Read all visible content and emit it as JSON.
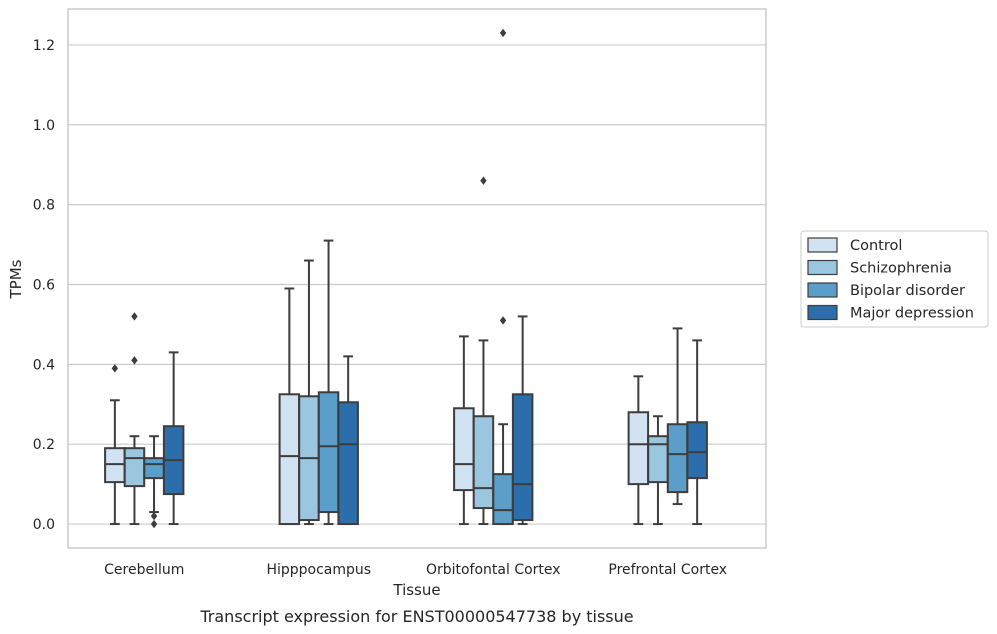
{
  "caption": "Transcript expression for ENST00000547738 by tissue",
  "chart_data": {
    "type": "box",
    "xlabel": "Tissue",
    "ylabel": "TPMs",
    "ylim": [
      -0.06,
      1.29
    ],
    "yticks": [
      0.0,
      0.2,
      0.4,
      0.6,
      0.8,
      1.0,
      1.2
    ],
    "ytick_labels": [
      "0.0",
      "0.2",
      "0.4",
      "0.6",
      "0.8",
      "1.0",
      "1.2"
    ],
    "grid": "horizontal",
    "legend_position": "right",
    "categories": [
      "Cerebellum",
      "Hipppocampus",
      "Orbitofontal Cortex",
      "Prefrontal Cortex"
    ],
    "series": [
      {
        "name": "Control",
        "color": "#d1e2f2",
        "boxes": [
          {
            "whislo": 0.0,
            "q1": 0.105,
            "med": 0.15,
            "q3": 0.19,
            "whishi": 0.31,
            "fliers": [
              0.39
            ]
          },
          {
            "whislo": 0.0,
            "q1": 0.0,
            "med": 0.17,
            "q3": 0.325,
            "whishi": 0.59,
            "fliers": []
          },
          {
            "whislo": 0.0,
            "q1": 0.085,
            "med": 0.15,
            "q3": 0.29,
            "whishi": 0.47,
            "fliers": []
          },
          {
            "whislo": 0.0,
            "q1": 0.1,
            "med": 0.2,
            "q3": 0.28,
            "whishi": 0.37,
            "fliers": []
          }
        ]
      },
      {
        "name": "Schizophrenia",
        "color": "#9ac6e0",
        "boxes": [
          {
            "whislo": 0.0,
            "q1": 0.095,
            "med": 0.165,
            "q3": 0.19,
            "whishi": 0.22,
            "fliers": [
              0.41,
              0.52
            ]
          },
          {
            "whislo": 0.0,
            "q1": 0.01,
            "med": 0.165,
            "q3": 0.32,
            "whishi": 0.66,
            "fliers": []
          },
          {
            "whislo": 0.0,
            "q1": 0.04,
            "med": 0.09,
            "q3": 0.27,
            "whishi": 0.46,
            "fliers": [
              0.86
            ]
          },
          {
            "whislo": 0.0,
            "q1": 0.105,
            "med": 0.2,
            "q3": 0.22,
            "whishi": 0.27,
            "fliers": []
          }
        ]
      },
      {
        "name": "Bipolar disorder",
        "color": "#5a9ec9",
        "boxes": [
          {
            "whislo": 0.03,
            "q1": 0.115,
            "med": 0.15,
            "q3": 0.165,
            "whishi": 0.22,
            "fliers": [
              0.02,
              0.0
            ]
          },
          {
            "whislo": 0.0,
            "q1": 0.03,
            "med": 0.195,
            "q3": 0.33,
            "whishi": 0.71,
            "fliers": []
          },
          {
            "whislo": 0.0,
            "q1": 0.0,
            "med": 0.035,
            "q3": 0.125,
            "whishi": 0.25,
            "fliers": [
              0.51,
              1.23
            ]
          },
          {
            "whislo": 0.05,
            "q1": 0.08,
            "med": 0.175,
            "q3": 0.25,
            "whishi": 0.49,
            "fliers": []
          }
        ]
      },
      {
        "name": "Major depression",
        "color": "#2c6eab",
        "boxes": [
          {
            "whislo": 0.0,
            "q1": 0.075,
            "med": 0.16,
            "q3": 0.245,
            "whishi": 0.43,
            "fliers": []
          },
          {
            "whislo": 0.0,
            "q1": 0.0,
            "med": 0.2,
            "q3": 0.305,
            "whishi": 0.42,
            "fliers": []
          },
          {
            "whislo": 0.0,
            "q1": 0.01,
            "med": 0.1,
            "q3": 0.325,
            "whishi": 0.52,
            "fliers": []
          },
          {
            "whislo": 0.0,
            "q1": 0.115,
            "med": 0.18,
            "q3": 0.255,
            "whishi": 0.46,
            "fliers": []
          }
        ]
      }
    ]
  }
}
